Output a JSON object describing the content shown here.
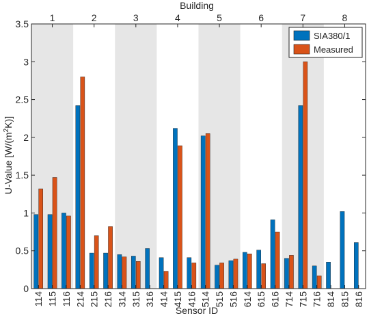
{
  "chart_data": {
    "type": "bar",
    "xlabel": "Sensor ID",
    "ylabel_main": "U-Value [W/(m",
    "ylabel_sup": "2",
    "ylabel_end": "K)]",
    "top_axis_label": "Building",
    "ylim": [
      0,
      3.5
    ],
    "yticks": [
      "0",
      "0.5",
      "1",
      "1.5",
      "2",
      "2.5",
      "3",
      "3.5"
    ],
    "categories": [
      "114",
      "115",
      "116",
      "214",
      "215",
      "216",
      "314",
      "315",
      "316",
      "414",
      "415",
      "416",
      "514",
      "515",
      "516",
      "614",
      "615",
      "616",
      "714",
      "715",
      "716",
      "814",
      "815",
      "816"
    ],
    "buildings": [
      "1",
      "2",
      "3",
      "4",
      "5",
      "6",
      "7",
      "8"
    ],
    "shaded_buildings": [
      "1",
      "3",
      "5",
      "7"
    ],
    "series": [
      {
        "name": "SIA380/1",
        "color": "#0072BD",
        "values": [
          0.98,
          0.98,
          1.0,
          2.42,
          0.47,
          0.47,
          0.45,
          0.43,
          0.53,
          0.41,
          2.12,
          0.41,
          2.02,
          0.31,
          0.37,
          0.48,
          0.51,
          0.91,
          0.4,
          2.42,
          0.3,
          0.35,
          1.02,
          0.61
        ]
      },
      {
        "name": "Measured",
        "color": "#D95319",
        "values": [
          1.32,
          1.47,
          0.96,
          2.8,
          0.7,
          0.82,
          0.42,
          0.36,
          null,
          0.23,
          1.89,
          0.34,
          2.05,
          0.34,
          0.39,
          0.46,
          0.33,
          0.75,
          0.44,
          3.0,
          0.17,
          null,
          null,
          null
        ]
      }
    ],
    "legend_position": "top-right",
    "grid": false
  }
}
